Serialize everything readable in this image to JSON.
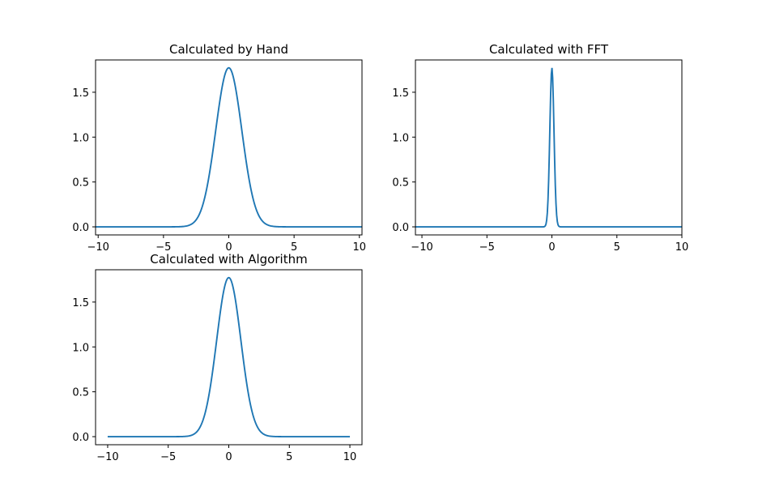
{
  "figure": {
    "background": "#ffffff",
    "line_color": "#1f77b4",
    "axes_color": "#000000"
  },
  "chart_data": [
    {
      "type": "line",
      "title": "Calculated by Hand",
      "xlabel": "",
      "ylabel": "",
      "xlim": [
        -10.2,
        10.2
      ],
      "ylim": [
        -0.09,
        1.86
      ],
      "xticks": [
        -10,
        -5,
        0,
        5,
        10
      ],
      "xtick_labels": [
        "−10",
        "−5",
        "0",
        "5",
        "10"
      ],
      "yticks": [
        0.0,
        0.5,
        1.0,
        1.5
      ],
      "ytick_labels": [
        "0.0",
        "0.5",
        "1.0",
        "1.5"
      ],
      "grid": false,
      "series": [
        {
          "x": [
            -10.2,
            -8,
            -6,
            -5,
            -4,
            -3.5,
            -3,
            -2.5,
            -2,
            -1.5,
            -1,
            -0.5,
            0,
            0.5,
            1,
            1.5,
            2,
            2.5,
            3,
            3.5,
            4,
            5,
            6,
            8,
            10.2
          ],
          "y": [
            0,
            0,
            0,
            0.0007,
            0.006,
            0.0386,
            0.0196,
            0.0782,
            0.2399,
            0.5756,
            1.0751,
            1.5646,
            1.7725,
            1.5646,
            1.0751,
            0.5756,
            0.2399,
            0.0782,
            0.0196,
            0.0386,
            0.006,
            0.0007,
            0,
            0,
            0
          ]
        }
      ]
    },
    {
      "type": "line",
      "title": "Calculated with FFT",
      "xlabel": "",
      "ylabel": "",
      "xlim": [
        -10.5,
        10.0
      ],
      "ylim": [
        -0.09,
        1.86
      ],
      "xticks": [
        -10,
        -5,
        0,
        5,
        10
      ],
      "xtick_labels": [
        "−10",
        "−5",
        "0",
        "5",
        "10"
      ],
      "yticks": [
        0.0,
        0.5,
        1.0,
        1.5
      ],
      "ytick_labels": [
        "0.0",
        "0.5",
        "1.0",
        "1.5"
      ],
      "grid": false,
      "series": [
        {
          "x": [
            -10.5,
            -5,
            -1,
            -0.8,
            -0.6,
            -0.5,
            -0.4,
            -0.3,
            -0.2,
            -0.1,
            0,
            0.1,
            0.2,
            0.3,
            0.4,
            0.5,
            0.6,
            0.8,
            1,
            5,
            10
          ],
          "y": [
            0,
            0,
            0,
            0.005,
            0.04,
            0.1,
            0.22,
            0.47,
            0.9,
            1.41,
            1.77,
            1.41,
            0.9,
            0.47,
            0.22,
            0.1,
            0.04,
            0.005,
            0,
            0,
            0
          ]
        }
      ]
    },
    {
      "type": "line",
      "title": "Calculated with Algorithm",
      "xlabel": "",
      "ylabel": "",
      "xlim": [
        -11.0,
        11.0
      ],
      "ylim": [
        -0.09,
        1.86
      ],
      "xticks": [
        -10,
        -5,
        0,
        5,
        10
      ],
      "xtick_labels": [
        "−10",
        "−5",
        "0",
        "5",
        "10"
      ],
      "yticks": [
        0.0,
        0.5,
        1.0,
        1.5
      ],
      "ytick_labels": [
        "0.0",
        "0.5",
        "1.0",
        "1.5"
      ],
      "grid": false,
      "series": [
        {
          "x": [
            -10,
            -8,
            -6,
            -5,
            -4,
            -3.5,
            -3,
            -2.5,
            -2,
            -1.5,
            -1,
            -0.5,
            0,
            0.5,
            1,
            1.5,
            2,
            2.5,
            3,
            3.5,
            4,
            5,
            6,
            8,
            10
          ],
          "y": [
            0,
            0,
            0,
            0.0007,
            0.006,
            0.0386,
            0.0196,
            0.0782,
            0.2399,
            0.5756,
            1.0751,
            1.5646,
            1.7725,
            1.5646,
            1.0751,
            0.5756,
            0.2399,
            0.0782,
            0.0196,
            0.0386,
            0.006,
            0.0007,
            0,
            0,
            0
          ]
        }
      ]
    }
  ]
}
